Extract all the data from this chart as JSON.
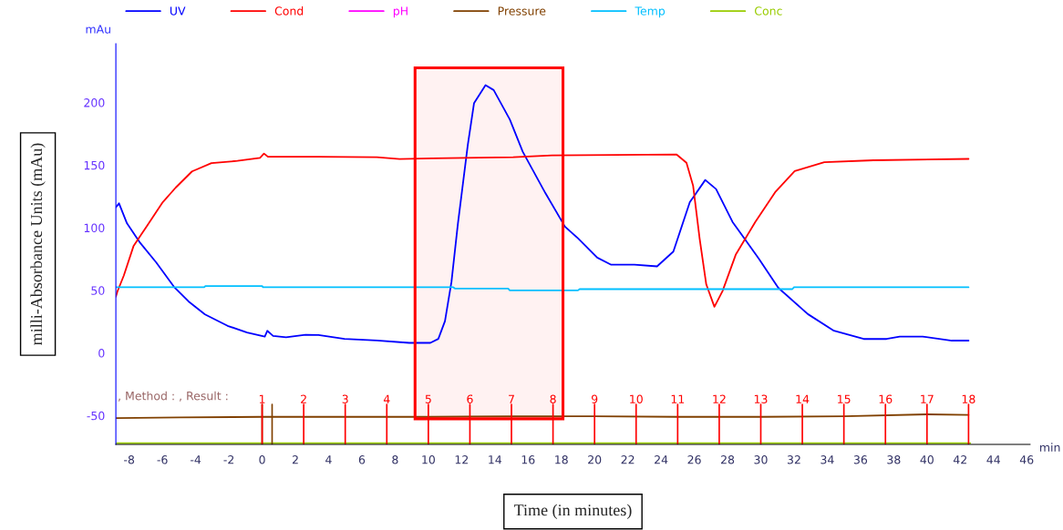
{
  "chart_data": {
    "type": "line",
    "xlabel": "Time (in minutes)",
    "ylabel": "milli-Absorbance Units (mAu)",
    "annotations": [
      "mAu",
      "min",
      ", Method : , Result :",
      {
        "text": "1",
        "x": 0,
        "y": -42
      },
      {
        "text": "2",
        "x": 2.5,
        "y": -42
      },
      {
        "text": "3",
        "x": 5,
        "y": -42
      },
      {
        "text": "4",
        "x": 7.5,
        "y": -42
      },
      {
        "text": "5",
        "x": 10,
        "y": -42
      },
      {
        "text": "6",
        "x": 12.5,
        "y": -42
      },
      {
        "text": "7",
        "x": 15,
        "y": -42
      },
      {
        "text": "8",
        "x": 17.5,
        "y": -42
      },
      {
        "text": "9",
        "x": 20,
        "y": -42
      },
      {
        "text": "10",
        "x": 22.5,
        "y": -42
      },
      {
        "text": "11",
        "x": 25,
        "y": -42
      },
      {
        "text": "12",
        "x": 27.5,
        "y": -42
      },
      {
        "text": "13",
        "x": 30,
        "y": -42
      },
      {
        "text": "14",
        "x": 32.5,
        "y": -42
      },
      {
        "text": "15",
        "x": 35,
        "y": -42
      },
      {
        "text": "16",
        "x": 37.5,
        "y": -42
      },
      {
        "text": "17",
        "x": 40,
        "y": -42
      },
      {
        "text": "18",
        "x": 42.5,
        "y": -42
      }
    ],
    "xlim": [
      -8.8,
      46.2
    ],
    "xticks": [
      -8,
      -6,
      -4,
      -2,
      0,
      2,
      4,
      6,
      8,
      10,
      12,
      14,
      16,
      18,
      20,
      22,
      24,
      26,
      28,
      30,
      32,
      34,
      36,
      38,
      40,
      42,
      44,
      46
    ],
    "ylim": [
      -73,
      247
    ],
    "yticks": [
      -50,
      0,
      50,
      100,
      150,
      200
    ],
    "grid": false,
    "legend": "top",
    "marker": "none",
    "line_style": "solid",
    "series": [
      {
        "name": "UV",
        "color": "#0000ff",
        "x": [
          -8.8,
          -8.61,
          -8.13,
          -7.34,
          -6.37,
          -5.3,
          -4.43,
          -3.44,
          -2.08,
          -0.91,
          0.16,
          0.31,
          0.66,
          1.44,
          2.61,
          3.39,
          4.95,
          6.9,
          8.85,
          10.12,
          10.6,
          11.0,
          11.39,
          11.78,
          12.37,
          12.75,
          13.44,
          13.93,
          14.9,
          15.68,
          17.05,
          18.22,
          19.0,
          20.16,
          21.0,
          22.4,
          23.76,
          24.74,
          25.73,
          26.66,
          27.31,
          28.3,
          29.87,
          31.05,
          32.83,
          34.4,
          36.19,
          37.57,
          38.36,
          39.74,
          41.5,
          42.5
        ],
        "values": [
          116.4,
          119.5,
          103.5,
          88,
          72.3,
          52.8,
          41.2,
          30.8,
          21.7,
          16.4,
          13.1,
          17.7,
          13.6,
          12.6,
          14.6,
          14.4,
          11.3,
          10,
          8.1,
          8.1,
          11.3,
          25.5,
          56.7,
          103.5,
          165.8,
          199.6,
          213.9,
          210,
          186.6,
          160.7,
          127.5,
          100.9,
          91.6,
          76.2,
          70.5,
          70.5,
          69.2,
          81,
          120.4,
          138.2,
          130.9,
          104.7,
          75.6,
          52.1,
          31.1,
          17.8,
          11.2,
          11.2,
          13.1,
          13.1,
          9.9,
          9.9
        ]
      },
      {
        "name": "Cond",
        "color": "#ff0000",
        "x": [
          -8.8,
          -8.71,
          -8.32,
          -7.74,
          -6.96,
          -5.98,
          -5.2,
          -4.22,
          -3.05,
          -1.49,
          -0.13,
          0.11,
          0.36,
          3.39,
          6.9,
          8.27,
          10.22,
          15.1,
          17.43,
          24.94,
          25.53,
          25.93,
          26.32,
          26.72,
          27.21,
          27.7,
          28.49,
          29.67,
          30.86,
          32.04,
          33.82,
          36.78,
          42.5
        ],
        "values": [
          45,
          49,
          61.9,
          85.3,
          100.9,
          120.4,
          132.1,
          145,
          151.6,
          153.4,
          155.9,
          159.3,
          156.7,
          156.7,
          156.4,
          154.9,
          155.4,
          156.4,
          157.8,
          158.5,
          151.9,
          133.5,
          91.5,
          54.8,
          36.9,
          49.5,
          78.4,
          104.7,
          128.3,
          145.3,
          152.4,
          153.9,
          155
        ]
      },
      {
        "name": "pH",
        "color": "#ff00ff"
      },
      {
        "name": "Pressure",
        "color": "#804000",
        "x": [
          -8.8,
          -5,
          0,
          5,
          10,
          15,
          20,
          25,
          30,
          35,
          40,
          42.5
        ],
        "values": [
          -52,
          -51.5,
          -51,
          -51,
          -51,
          -50.5,
          -50.5,
          -51,
          -51,
          -50.5,
          -49,
          -49.5
        ]
      },
      {
        "name": "Temp",
        "color": "#00bfff",
        "x": [
          -8.8,
          -3.5,
          -3.4,
          0,
          0.05,
          11.5,
          11.6,
          14.8,
          14.9,
          19,
          19.1,
          31.9,
          32,
          42.5
        ],
        "values": [
          52.5,
          52.5,
          53.5,
          53.5,
          52.5,
          52.5,
          51.5,
          51.5,
          50,
          50,
          51,
          51,
          52.5,
          52.5
        ]
      },
      {
        "name": "Conc",
        "color": "#99cc00",
        "x": [
          -8.8,
          42.6
        ],
        "values": [
          -72,
          -72
        ]
      }
    ],
    "ref_lines": [
      {
        "axis": "x",
        "value": 0,
        "color": "#804000"
      },
      {
        "axis": "x",
        "value": 0.6,
        "color": "#804000"
      },
      {
        "axis": "x",
        "value": 0,
        "color": "#ff0000"
      },
      {
        "axis": "x",
        "value": 2.5,
        "color": "#ff0000"
      },
      {
        "axis": "x",
        "value": 5,
        "color": "#ff0000"
      },
      {
        "axis": "x",
        "value": 7.5,
        "color": "#ff0000"
      },
      {
        "axis": "x",
        "value": 10,
        "color": "#ff0000"
      },
      {
        "axis": "x",
        "value": 12.5,
        "color": "#ff0000"
      },
      {
        "axis": "x",
        "value": 15,
        "color": "#ff0000"
      },
      {
        "axis": "x",
        "value": 17.5,
        "color": "#ff0000"
      },
      {
        "axis": "x",
        "value": 20,
        "color": "#ff0000"
      },
      {
        "axis": "x",
        "value": 22.5,
        "color": "#ff0000"
      },
      {
        "axis": "x",
        "value": 25,
        "color": "#ff0000"
      },
      {
        "axis": "x",
        "value": 27.5,
        "color": "#ff0000"
      },
      {
        "axis": "x",
        "value": 30,
        "color": "#ff0000"
      },
      {
        "axis": "x",
        "value": 32.5,
        "color": "#ff0000"
      },
      {
        "axis": "x",
        "value": 35,
        "color": "#ff0000"
      },
      {
        "axis": "x",
        "value": 37.5,
        "color": "#ff0000"
      },
      {
        "axis": "x",
        "value": 40,
        "color": "#ff0000"
      },
      {
        "axis": "x",
        "value": 42.5,
        "color": "#ff0000"
      }
    ],
    "bands": [
      {
        "axis": "x",
        "from": 9.2,
        "to": 18.1,
        "color": "#ff0000"
      }
    ]
  }
}
